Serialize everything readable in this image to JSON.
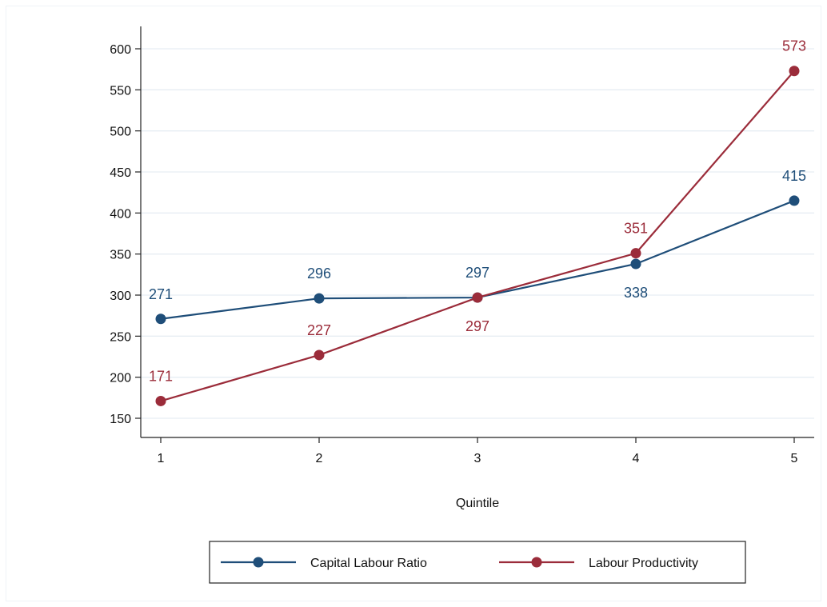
{
  "chart_data": {
    "type": "line",
    "x": [
      1,
      2,
      3,
      4,
      5
    ],
    "xlabel": "Quintile",
    "ylabel": "",
    "ylim": [
      150,
      600
    ],
    "yticks": [
      150,
      200,
      250,
      300,
      350,
      400,
      450,
      500,
      550,
      600
    ],
    "grid": true,
    "legend_position": "bottom",
    "series": [
      {
        "name": "Capital Labour Ratio",
        "color": "#1f4e79",
        "values": [
          271,
          296,
          297,
          338,
          415
        ],
        "label_side": [
          "above",
          "above",
          "above",
          "below",
          "above"
        ]
      },
      {
        "name": "Labour Productivity",
        "color": "#9b2c3a",
        "values": [
          171,
          227,
          297,
          351,
          573
        ],
        "label_side": [
          "above",
          "above",
          "below",
          "above",
          "above"
        ]
      }
    ]
  }
}
